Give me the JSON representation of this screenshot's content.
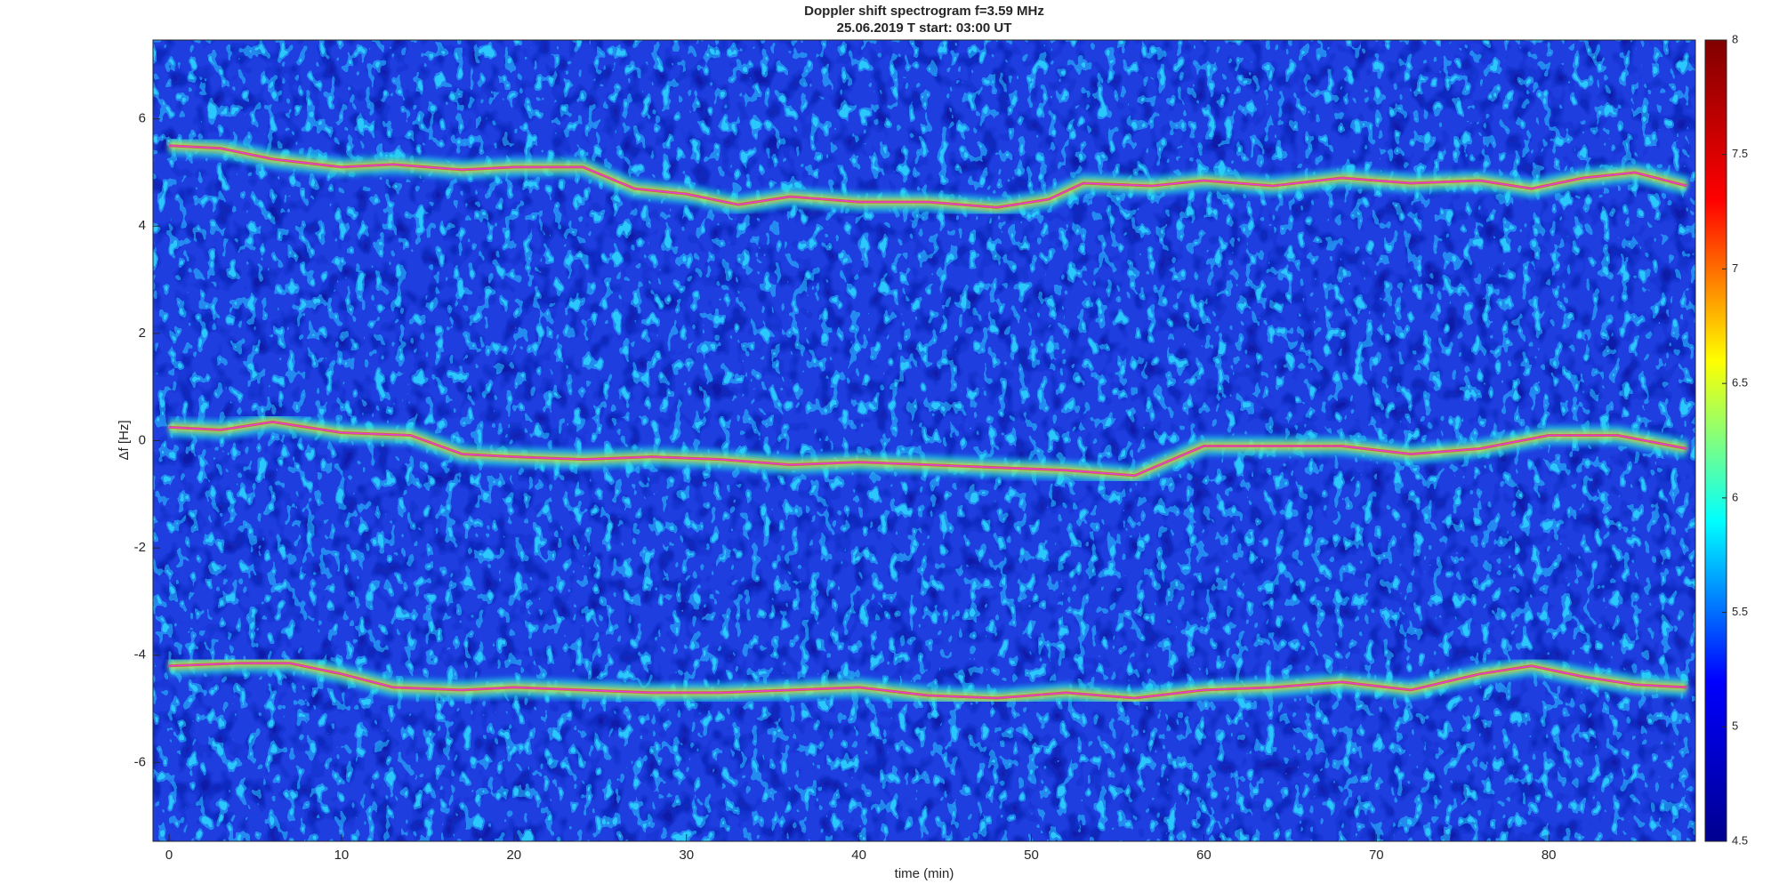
{
  "chart_data": {
    "type": "spectrogram",
    "title": "Doppler shift spectrogram f=3.59 MHz",
    "subtitle": "25.06.2019   T start: 03:00 UT",
    "x_label": "time (min)",
    "y_label": "Δf [Hz]",
    "xlim": [
      -0.93,
      88.5
    ],
    "xticks": [
      0,
      10,
      20,
      30,
      40,
      50,
      60,
      70,
      80
    ],
    "ylim": [
      -7.47,
      7.47
    ],
    "yticks": [
      -6,
      -4,
      -2,
      0,
      2,
      4,
      6
    ],
    "clim": [
      4.5,
      8
    ],
    "cticks": [
      4.5,
      5,
      5.5,
      6,
      6.5,
      7,
      7.5,
      8
    ],
    "colormap": [
      "#00008f",
      "#0000ff",
      "#00ffff",
      "#ffff00",
      "#ff0000",
      "#800000"
    ],
    "background": "#1e3ee0",
    "series": [
      {
        "color": "#e040e0",
        "x": [
          0,
          3,
          6,
          10,
          13,
          17,
          20,
          24,
          27,
          30,
          33,
          36,
          40,
          44,
          48,
          51,
          53,
          57,
          60,
          64,
          68,
          72,
          76,
          79,
          82,
          85,
          88
        ],
        "values": [
          5.5,
          5.45,
          5.25,
          5.1,
          5.15,
          5.05,
          5.1,
          5.1,
          4.7,
          4.6,
          4.4,
          4.55,
          4.45,
          4.45,
          4.35,
          4.5,
          4.8,
          4.75,
          4.85,
          4.75,
          4.9,
          4.8,
          4.85,
          4.7,
          4.9,
          5.0,
          4.75
        ]
      },
      {
        "color": "#e040e0",
        "x": [
          0,
          3,
          6,
          10,
          14,
          17,
          20,
          24,
          28,
          32,
          36,
          40,
          44,
          48,
          52,
          56,
          60,
          64,
          68,
          72,
          76,
          80,
          84,
          88
        ],
        "values": [
          0.25,
          0.2,
          0.35,
          0.15,
          0.1,
          -0.25,
          -0.3,
          -0.35,
          -0.3,
          -0.35,
          -0.45,
          -0.4,
          -0.45,
          -0.5,
          -0.55,
          -0.65,
          -0.1,
          -0.1,
          -0.1,
          -0.25,
          -0.15,
          0.1,
          0.1,
          -0.15
        ]
      },
      {
        "color": "#e040e0",
        "x": [
          0,
          4,
          7,
          10,
          13,
          17,
          20,
          24,
          28,
          32,
          36,
          40,
          44,
          48,
          52,
          56,
          60,
          64,
          68,
          72,
          76,
          79,
          82,
          85,
          88
        ],
        "values": [
          -4.2,
          -4.15,
          -4.15,
          -4.35,
          -4.6,
          -4.65,
          -4.6,
          -4.65,
          -4.7,
          -4.7,
          -4.65,
          -4.6,
          -4.75,
          -4.8,
          -4.7,
          -4.8,
          -4.65,
          -4.6,
          -4.5,
          -4.65,
          -4.35,
          -4.2,
          -4.4,
          -4.55,
          -4.6
        ]
      }
    ]
  }
}
